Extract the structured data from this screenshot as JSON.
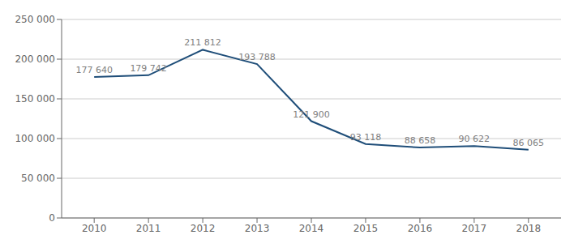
{
  "chart_data": {
    "type": "line",
    "x": [
      2010,
      2011,
      2012,
      2013,
      2014,
      2015,
      2016,
      2017,
      2018
    ],
    "values": [
      177640,
      179742,
      211812,
      193788,
      121900,
      93118,
      88658,
      90622,
      86065
    ],
    "value_labels": [
      "177 640",
      "179 742",
      "211 812",
      "193 788",
      "121 900",
      "93 118",
      "88 658",
      "90 622",
      "86 065"
    ],
    "color": "#1F4E79",
    "xlim": [
      2009.4,
      2018.6
    ],
    "xticks": [
      2010,
      2011,
      2012,
      2013,
      2014,
      2015,
      2016,
      2017,
      2018
    ],
    "ylim": [
      0,
      250000
    ],
    "yticks": [
      0,
      {
        "value": 50000,
        "label": "50 000"
      },
      {
        "value": 100000,
        "label": "100 000"
      },
      {
        "value": 150000,
        "label": "150 000"
      },
      {
        "value": 200000,
        "label": "200 000"
      },
      {
        "value": 250000,
        "label": "250 000"
      }
    ],
    "grid": "y",
    "data_labels": true
  }
}
